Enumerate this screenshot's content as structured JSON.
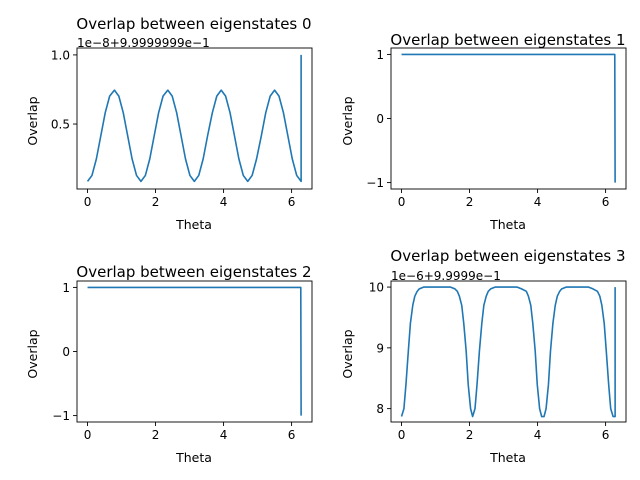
{
  "chart_data": [
    {
      "type": "line",
      "title": "Overlap between eigenstates 0",
      "xlabel": "Theta",
      "ylabel": "Overlap",
      "offset_text": "1e−8+9.9999999e−1",
      "xlim": [
        -0.31,
        6.6
      ],
      "ylim": [
        0.03,
        1.05
      ],
      "xticks": [
        0,
        2,
        4,
        6
      ],
      "xtick_labels": [
        "0",
        "2",
        "4",
        "6"
      ],
      "yticks": [
        0.5,
        1.0
      ],
      "ytick_labels": [
        "0.5",
        "1.0"
      ],
      "grid": false,
      "series": [
        {
          "color": "#1f77b4",
          "x": [
            0.0,
            0.13,
            0.26,
            0.39,
            0.52,
            0.65,
            0.79,
            0.92,
            1.05,
            1.18,
            1.31,
            1.44,
            1.57,
            1.7,
            1.83,
            1.96,
            2.09,
            2.22,
            2.36,
            2.49,
            2.62,
            2.75,
            2.88,
            3.01,
            3.14,
            3.27,
            3.4,
            3.53,
            3.67,
            3.8,
            3.93,
            4.06,
            4.19,
            4.32,
            4.45,
            4.58,
            4.71,
            4.84,
            4.97,
            5.11,
            5.24,
            5.37,
            5.5,
            5.63,
            5.76,
            5.89,
            6.02,
            6.15,
            6.28,
            6.28
          ],
          "y": [
            0.085,
            0.128,
            0.248,
            0.415,
            0.582,
            0.702,
            0.745,
            0.702,
            0.582,
            0.415,
            0.248,
            0.128,
            0.085,
            0.128,
            0.248,
            0.415,
            0.582,
            0.702,
            0.745,
            0.702,
            0.582,
            0.415,
            0.248,
            0.128,
            0.085,
            0.128,
            0.248,
            0.415,
            0.582,
            0.702,
            0.745,
            0.702,
            0.582,
            0.415,
            0.248,
            0.128,
            0.085,
            0.128,
            0.248,
            0.415,
            0.582,
            0.702,
            0.745,
            0.702,
            0.582,
            0.415,
            0.248,
            0.128,
            0.085,
            1.0
          ]
        }
      ]
    },
    {
      "type": "line",
      "title": "Overlap between eigenstates 1",
      "xlabel": "Theta",
      "ylabel": "Overlap",
      "offset_text": "",
      "xlim": [
        -0.31,
        6.6
      ],
      "ylim": [
        -1.1,
        1.1
      ],
      "xticks": [
        0,
        2,
        4,
        6
      ],
      "xtick_labels": [
        "0",
        "2",
        "4",
        "6"
      ],
      "yticks": [
        -1,
        0,
        1
      ],
      "ytick_labels": [
        "−1",
        "0",
        "1"
      ],
      "grid": false,
      "series": [
        {
          "color": "#1f77b4",
          "x": [
            0.0,
            6.27,
            6.28
          ],
          "y": [
            1.0,
            1.0,
            -1.0
          ]
        }
      ]
    },
    {
      "type": "line",
      "title": "Overlap between eigenstates 2",
      "xlabel": "Theta",
      "ylabel": "Overlap",
      "offset_text": "",
      "xlim": [
        -0.31,
        6.6
      ],
      "ylim": [
        -1.1,
        1.1
      ],
      "xticks": [
        0,
        2,
        4,
        6
      ],
      "xtick_labels": [
        "0",
        "2",
        "4",
        "6"
      ],
      "yticks": [
        -1,
        0,
        1
      ],
      "ytick_labels": [
        "−1",
        "0",
        "1"
      ],
      "grid": false,
      "series": [
        {
          "color": "#1f77b4",
          "x": [
            0.0,
            6.27,
            6.28
          ],
          "y": [
            1.0,
            1.0,
            -1.0
          ]
        }
      ]
    },
    {
      "type": "line",
      "title": "Overlap between eigenstates 3",
      "xlabel": "Theta",
      "ylabel": "Overlap",
      "offset_text": "1e−6+9.9999e−1",
      "xlim": [
        -0.31,
        6.6
      ],
      "ylim": [
        7.78,
        10.1
      ],
      "xticks": [
        0,
        2,
        4,
        6
      ],
      "xtick_labels": [
        "0",
        "2",
        "4",
        "6"
      ],
      "yticks": [
        8,
        9,
        10
      ],
      "ytick_labels": [
        "8",
        "9",
        "10"
      ],
      "grid": false,
      "series": [
        {
          "color": "#1f77b4",
          "x": [
            0.0,
            0.07,
            0.13,
            0.2,
            0.26,
            0.33,
            0.39,
            0.46,
            0.52,
            0.65,
            0.79,
            0.92,
            1.05,
            1.18,
            1.31,
            1.44,
            1.57,
            1.64,
            1.7,
            1.77,
            1.83,
            1.9,
            1.96,
            2.03,
            2.09,
            2.16,
            2.22,
            2.29,
            2.36,
            2.42,
            2.49,
            2.55,
            2.62,
            2.75,
            2.88,
            3.01,
            3.14,
            3.27,
            3.4,
            3.53,
            3.67,
            3.73,
            3.8,
            3.86,
            3.93,
            3.99,
            4.06,
            4.12,
            4.19,
            4.25,
            4.32,
            4.38,
            4.45,
            4.52,
            4.58,
            4.65,
            4.71,
            4.84,
            4.97,
            5.11,
            5.24,
            5.37,
            5.5,
            5.63,
            5.76,
            5.83,
            5.89,
            5.96,
            6.02,
            6.09,
            6.15,
            6.22,
            6.28,
            6.28
          ],
          "y": [
            7.87,
            8.0,
            8.4,
            8.95,
            9.4,
            9.7,
            9.85,
            9.93,
            9.97,
            10.0,
            10.0,
            10.0,
            10.0,
            10.0,
            10.0,
            10.0,
            9.97,
            9.93,
            9.85,
            9.7,
            9.4,
            8.95,
            8.4,
            8.0,
            7.87,
            8.0,
            8.4,
            8.95,
            9.4,
            9.7,
            9.85,
            9.93,
            9.97,
            10.0,
            10.0,
            10.0,
            10.0,
            10.0,
            10.0,
            9.97,
            9.93,
            9.85,
            9.7,
            9.4,
            8.95,
            8.4,
            8.0,
            7.87,
            7.87,
            8.0,
            8.4,
            8.95,
            9.4,
            9.7,
            9.85,
            9.93,
            9.97,
            10.0,
            10.0,
            10.0,
            10.0,
            10.0,
            10.0,
            9.97,
            9.93,
            9.85,
            9.7,
            9.4,
            8.95,
            8.4,
            8.0,
            7.87,
            7.87,
            10.0
          ]
        }
      ]
    }
  ]
}
